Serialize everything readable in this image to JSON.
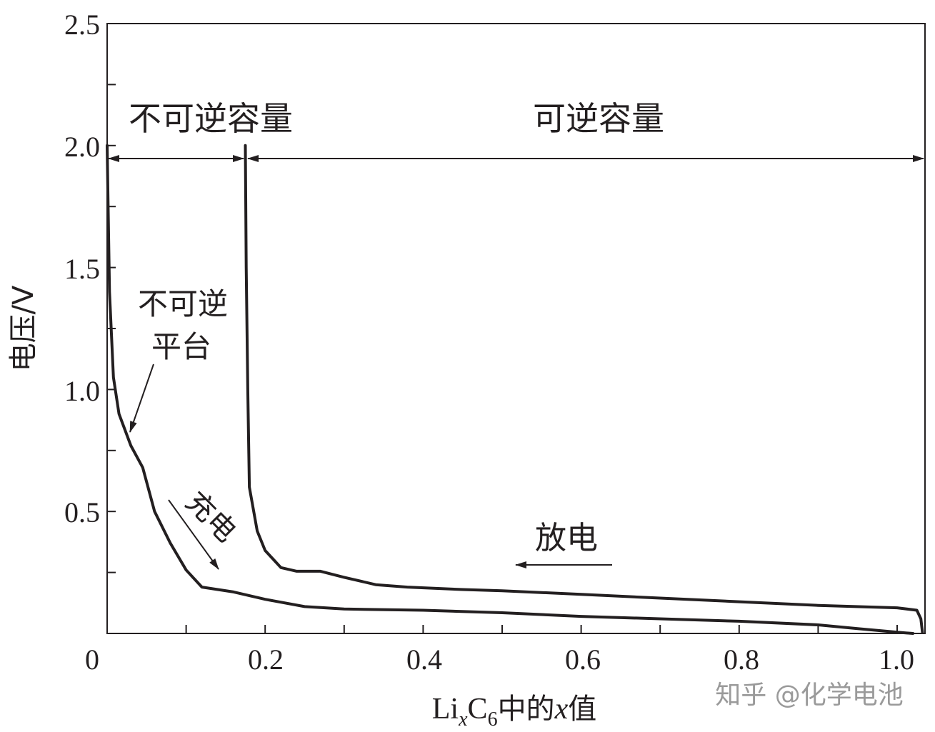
{
  "chart_data": {
    "type": "line",
    "title": "",
    "xlabel": {
      "prefix": "Li",
      "sub1": "x",
      "mid": "C",
      "sub2": "6",
      "suffix": "中的",
      "var": "x",
      "end": "值"
    },
    "ylabel": "电压/V",
    "xlim": [
      0,
      1.03
    ],
    "ylim": [
      0,
      2.5
    ],
    "x_tick_labels": [
      "0",
      "0.2",
      "0.4",
      "0.6",
      "0.8",
      "1.0"
    ],
    "x_tick_values": [
      0,
      0.2,
      0.4,
      0.6,
      0.8,
      1.0
    ],
    "y_tick_labels": [
      "0.5",
      "1.0",
      "1.5",
      "2.0",
      "2.5"
    ],
    "y_tick_values": [
      0.5,
      1.0,
      1.5,
      2.0,
      2.5
    ],
    "grid": false,
    "series": [
      {
        "name": "充电",
        "x": [
          0.0,
          0.003,
          0.008,
          0.015,
          0.03,
          0.045,
          0.06,
          0.08,
          0.1,
          0.12,
          0.14,
          0.16,
          0.2,
          0.25,
          0.3,
          0.4,
          0.5,
          0.6,
          0.7,
          0.8,
          0.9,
          0.95,
          1.0,
          1.02
        ],
        "y": [
          2.0,
          1.4,
          1.05,
          0.9,
          0.77,
          0.68,
          0.5,
          0.37,
          0.26,
          0.19,
          0.18,
          0.17,
          0.14,
          0.11,
          0.1,
          0.095,
          0.085,
          0.07,
          0.06,
          0.05,
          0.035,
          0.02,
          0.005,
          0.0
        ]
      },
      {
        "name": "放电",
        "x": [
          0.175,
          0.176,
          0.178,
          0.18,
          0.19,
          0.2,
          0.22,
          0.24,
          0.27,
          0.3,
          0.34,
          0.38,
          0.45,
          0.5,
          0.6,
          0.7,
          0.8,
          0.9,
          1.0,
          1.025,
          1.03,
          1.032
        ],
        "y": [
          2.0,
          1.5,
          1.0,
          0.6,
          0.42,
          0.34,
          0.27,
          0.255,
          0.255,
          0.23,
          0.2,
          0.19,
          0.18,
          0.175,
          0.16,
          0.145,
          0.13,
          0.115,
          0.105,
          0.095,
          0.06,
          0.005
        ]
      }
    ],
    "annotations": {
      "irreversible_capacity": "不可逆容量",
      "reversible_capacity": "可逆容量",
      "irreversible_plateau_line1": "不可逆",
      "irreversible_plateau_line2": "平台",
      "charge": "充电",
      "discharge": "放电"
    },
    "arrow_span": {
      "y": 1.95,
      "irreversible": [
        0.0,
        0.175
      ],
      "reversible": [
        0.175,
        1.03
      ]
    }
  },
  "watermark": "知乎 @化学电池",
  "colors": {
    "line": "#231f20",
    "watermark": "#9a9a9a",
    "background": "#ffffff"
  }
}
